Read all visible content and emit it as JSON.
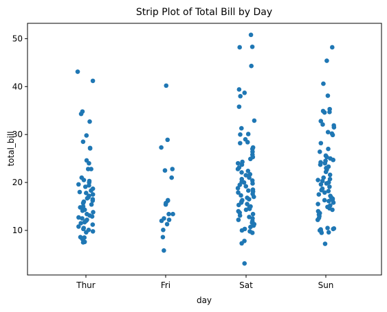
{
  "chart_data": {
    "type": "scatter",
    "subtype": "strip",
    "title": "Strip Plot of Total Bill by Day",
    "xlabel": "day",
    "ylabel": "total_bill",
    "categories": [
      "Thur",
      "Fri",
      "Sat",
      "Sun"
    ],
    "yticks": [
      10,
      20,
      30,
      40,
      50
    ],
    "ylim": [
      0.7,
      53.2
    ],
    "grid": false,
    "legend": "none",
    "point_color": "#1f77b4",
    "series": [
      {
        "category": "Thur",
        "values": [
          43.1,
          41.2,
          34.8,
          34.3,
          32.7,
          29.8,
          28.5,
          27.2,
          27.1,
          24.6,
          24.0,
          22.8,
          22.8,
          21.0,
          20.5,
          20.3,
          20.0,
          19.6,
          19.4,
          19.1,
          18.7,
          18.3,
          18.0,
          17.8,
          17.5,
          17.2,
          16.9,
          16.7,
          16.5,
          16.2,
          16.0,
          15.7,
          15.4,
          15.0,
          14.8,
          14.5,
          14.3,
          14.1,
          13.8,
          13.4,
          13.1,
          12.9,
          12.7,
          12.5,
          12.2,
          12.0,
          11.7,
          11.5,
          11.2,
          10.8,
          10.5,
          10.3,
          10.1,
          9.8,
          9.6,
          8.6,
          8.5,
          8.2,
          7.7,
          7.6,
          7.5
        ]
      },
      {
        "category": "Fri",
        "values": [
          40.2,
          28.9,
          27.3,
          22.8,
          22.5,
          21.0,
          16.3,
          16.2,
          15.7,
          15.4,
          13.4,
          13.4,
          12.5,
          12.2,
          12.0,
          11.3,
          10.1,
          8.6,
          5.8
        ]
      },
      {
        "category": "Sat",
        "values": [
          50.8,
          48.3,
          48.2,
          44.3,
          39.4,
          38.7,
          38.0,
          35.8,
          32.9,
          31.3,
          30.1,
          30.0,
          29.0,
          28.4,
          28.2,
          27.3,
          27.0,
          26.4,
          25.8,
          25.3,
          24.9,
          24.3,
          24.0,
          23.7,
          23.1,
          22.8,
          22.4,
          22.1,
          21.7,
          21.5,
          21.0,
          20.7,
          20.4,
          20.1,
          20.0,
          19.8,
          19.5,
          19.2,
          18.8,
          18.5,
          18.3,
          18.1,
          17.9,
          17.6,
          17.3,
          17.0,
          16.8,
          16.5,
          16.3,
          16.0,
          15.8,
          15.5,
          15.3,
          15.0,
          14.8,
          14.5,
          14.3,
          14.0,
          13.7,
          13.4,
          13.1,
          12.8,
          12.5,
          12.2,
          11.9,
          11.6,
          11.3,
          11.0,
          10.7,
          10.3,
          10.0,
          9.8,
          9.5,
          7.8,
          7.3,
          3.1
        ]
      },
      {
        "category": "Sun",
        "values": [
          48.2,
          45.4,
          40.6,
          38.1,
          35.3,
          34.9,
          34.7,
          34.6,
          32.8,
          32.1,
          31.9,
          31.5,
          30.5,
          30.2,
          29.9,
          28.2,
          27.0,
          26.4,
          25.6,
          25.3,
          25.0,
          24.7,
          24.5,
          24.2,
          24.0,
          23.7,
          23.3,
          23.0,
          22.7,
          22.2,
          21.6,
          21.0,
          20.7,
          20.5,
          20.3,
          19.8,
          19.6,
          19.1,
          18.7,
          18.4,
          18.2,
          17.9,
          17.5,
          17.2,
          16.9,
          16.6,
          16.4,
          16.1,
          15.8,
          15.5,
          15.2,
          14.9,
          14.6,
          14.3,
          14.0,
          13.6,
          13.3,
          13.0,
          12.6,
          12.2,
          10.5,
          10.3,
          10.2,
          10.0,
          9.9,
          9.6,
          9.5,
          7.2,
          10.4,
          16.3,
          20.0
        ]
      }
    ]
  }
}
